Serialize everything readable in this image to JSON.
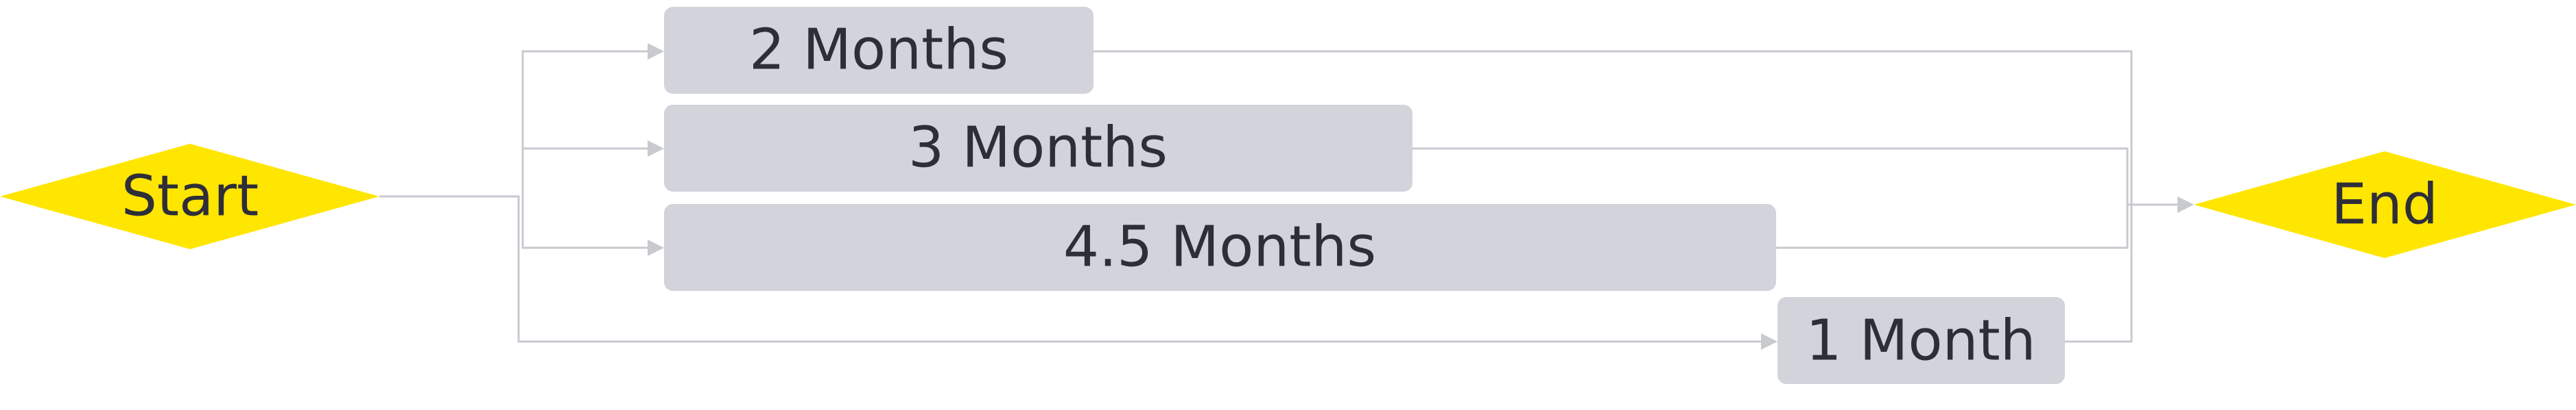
{
  "start": {
    "label": "Start"
  },
  "end": {
    "label": "End"
  },
  "tasks": [
    {
      "label": "2 Months"
    },
    {
      "label": "3 Months"
    },
    {
      "label": "4.5 Months"
    },
    {
      "label": "1 Month"
    }
  ],
  "colors": {
    "milestone": "#ffe600",
    "task": "#d2d3db",
    "text": "#2e2e38",
    "connector": "#c9cad0"
  }
}
